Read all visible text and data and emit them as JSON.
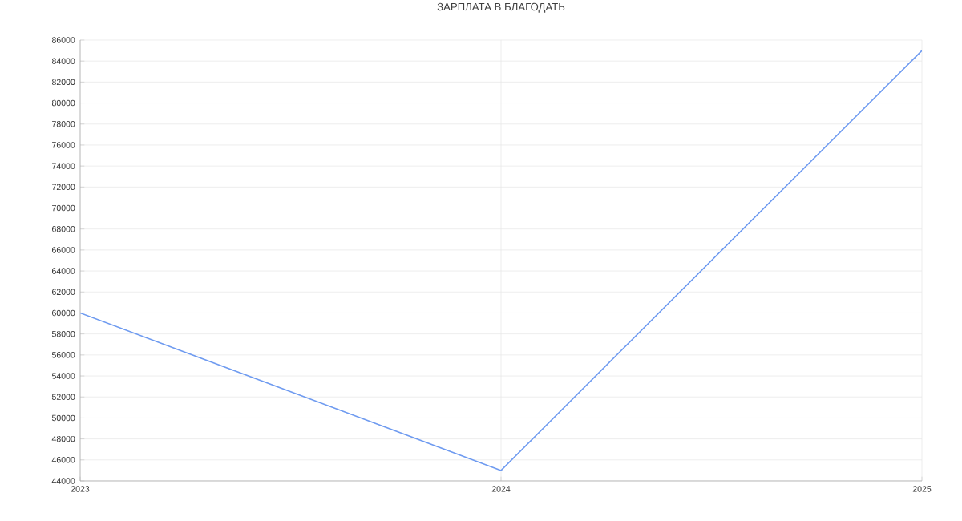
{
  "chart_data": {
    "type": "line",
    "title": "ЗАРПЛАТА В БЛАГОДАТЬ",
    "categories": [
      "2023",
      "2024",
      "2025"
    ],
    "series": [
      {
        "color": "#6f9bf0",
        "values": [
          60000,
          45000,
          85000
        ]
      }
    ],
    "ylim": [
      44000,
      86000
    ],
    "yticks": [
      44000,
      46000,
      48000,
      50000,
      52000,
      54000,
      56000,
      58000,
      60000,
      62000,
      64000,
      66000,
      68000,
      70000,
      72000,
      74000,
      76000,
      78000,
      80000,
      82000,
      84000,
      86000
    ],
    "grid": true
  }
}
